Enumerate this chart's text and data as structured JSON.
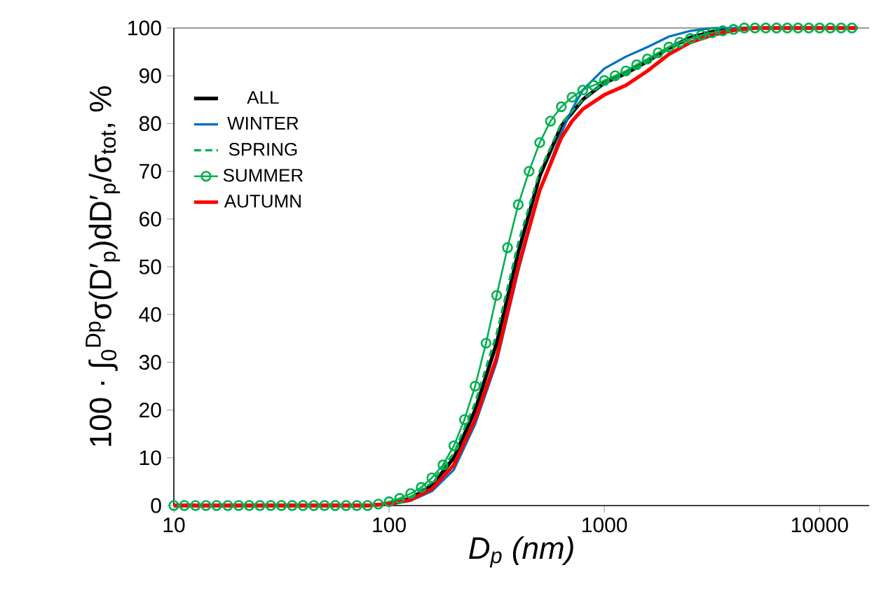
{
  "chart_data": {
    "type": "line",
    "xlabel": "D$_{p}$ (nm)",
    "ylabel": "100 · ∫$_{0}$$^{Dp}$σ(D′$_{p}$)dD′$_{p}$/σ$_{tot}$, %",
    "log": "x",
    "grid": false,
    "legend": "top left",
    "xlim": [
      10,
      17000
    ],
    "xticks": [
      10,
      100,
      1000,
      10000
    ],
    "ylim": [
      0,
      100
    ],
    "yticks": [
      0,
      10,
      20,
      30,
      40,
      50,
      60,
      70,
      80,
      90,
      100
    ],
    "series": [
      {
        "name": "ALL",
        "color": "#000000",
        "marker": "none",
        "line_style": "solid",
        "x": [
          10,
          79.4,
          100,
          126,
          158,
          200,
          251,
          316,
          398,
          501,
          631,
          794,
          1000,
          1259,
          1585,
          1995,
          2512,
          3162,
          3981,
          5012,
          15000
        ],
        "values": [
          0,
          0,
          0.4,
          1.5,
          4.2,
          10,
          20,
          34,
          53,
          69,
          79.5,
          85,
          88.5,
          90.5,
          93,
          95.8,
          98,
          99.2,
          99.8,
          100,
          100
        ]
      },
      {
        "name": "WINTER",
        "color": "#0070c0",
        "marker": "none",
        "line_style": "solid",
        "x": [
          100,
          126,
          158,
          200,
          251,
          316,
          398,
          501,
          631,
          708,
          794,
          1000,
          1259,
          1585,
          1995,
          2512,
          3162,
          15000
        ],
        "values": [
          0.2,
          1,
          3,
          7.5,
          17,
          30,
          49,
          66,
          78,
          83,
          87,
          91.5,
          94,
          96,
          98.2,
          99.4,
          100,
          100
        ]
      },
      {
        "name": "SPRING",
        "color": "#00b050",
        "marker": "none",
        "line_style": "dashed",
        "x": [
          10,
          79.4,
          100,
          126,
          158,
          200,
          251,
          316,
          398,
          501,
          631,
          794,
          1000,
          1259,
          1585,
          1995,
          2512,
          3162,
          3981,
          5012,
          15000
        ],
        "values": [
          0,
          0,
          0.5,
          1.8,
          4.8,
          11,
          21.5,
          36,
          55,
          70,
          80,
          85,
          88.5,
          90.5,
          93,
          95.5,
          97.7,
          99,
          99.7,
          100,
          100
        ]
      },
      {
        "name": "SUMMER",
        "color": "#00b050",
        "marker": "circle",
        "line_style": "solid",
        "x": [
          10,
          11.2,
          12.6,
          14.1,
          15.8,
          17.8,
          20,
          22.4,
          25.1,
          28.2,
          31.6,
          35.5,
          39.8,
          44.7,
          50.1,
          56.2,
          63.1,
          70.8,
          79.4,
          89.1,
          100,
          112,
          126,
          141,
          158,
          178,
          200,
          224,
          251,
          282,
          316,
          355,
          398,
          447,
          501,
          562,
          631,
          708,
          794,
          891,
          1000,
          1122,
          1259,
          1413,
          1585,
          1778,
          1995,
          2239,
          2512,
          2818,
          3162,
          3548,
          3981,
          4467,
          5012,
          5623,
          6310,
          7079,
          7943,
          8913,
          10000,
          11220,
          12589,
          14125
        ],
        "values": [
          0,
          0,
          0,
          0,
          0,
          0,
          0,
          0,
          0,
          0,
          0,
          0,
          0,
          0,
          0,
          0,
          0,
          0,
          0,
          0.3,
          0.8,
          1.5,
          2.5,
          3.8,
          5.8,
          8.5,
          12.5,
          18,
          25,
          34,
          44,
          54,
          63,
          70,
          76,
          80.5,
          83.5,
          85.5,
          87,
          88,
          89,
          90,
          91,
          92.3,
          93.5,
          94.8,
          96,
          97,
          97.8,
          98.5,
          99,
          99.4,
          99.7,
          100,
          100,
          100,
          100,
          100,
          100,
          100,
          100,
          100,
          100,
          100
        ]
      },
      {
        "name": "AUTUMN",
        "color": "#ff0000",
        "marker": "none",
        "line_style": "solid",
        "x": [
          10,
          79.4,
          100,
          126,
          158,
          200,
          251,
          316,
          398,
          501,
          631,
          708,
          794,
          1000,
          1259,
          1585,
          1995,
          2512,
          3162,
          3981,
          5012,
          15000
        ],
        "values": [
          0,
          0,
          0.3,
          1.2,
          3.5,
          8.5,
          18,
          31,
          50,
          66,
          77,
          80.5,
          83,
          86,
          88,
          91,
          94.5,
          97,
          98.5,
          99.5,
          100,
          100
        ]
      }
    ]
  }
}
